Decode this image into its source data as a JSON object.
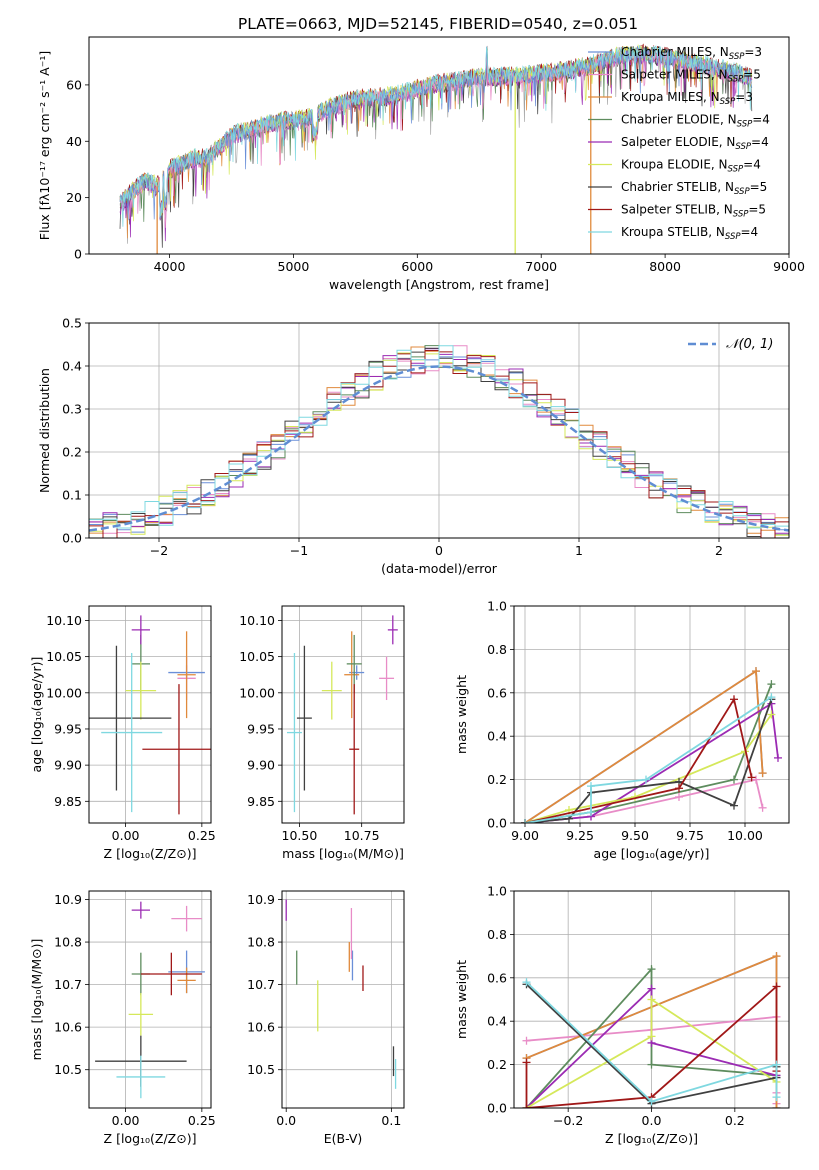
{
  "figure_title": "PLATE=0663, MJD=52145, FIBERID=0540, z=0.051",
  "colors": {
    "Chabrier MILES": "#6a8fd8",
    "Salpeter MILES": "#e88cc7",
    "Kroupa MILES": "#e08a3c",
    "Chabrier ELODIE": "#5e8c5e",
    "Salpeter ELODIE": "#9b2bb3",
    "Kroupa ELODIE": "#d5e85a",
    "Chabrier STELIB": "#404040",
    "Salpeter STELIB": "#a01818",
    "Kroupa STELIB": "#7fd8e0",
    "normal": "#5f8dd3"
  },
  "chart_data": [
    {
      "id": "spectrum",
      "type": "line",
      "xlabel": "wavelength [Angstrom, rest frame]",
      "ylabel": "Flux [fλ10⁻¹⁷ erg cm⁻² s⁻¹ A⁻¹]",
      "xlim": [
        3350,
        9000
      ],
      "ylim": [
        0,
        77
      ],
      "xticks": [
        "4000",
        "5000",
        "6000",
        "7000",
        "8000",
        "9000"
      ],
      "yticks": [
        "0",
        "20",
        "40",
        "60"
      ],
      "continuum": {
        "x": [
          3600,
          3700,
          3800,
          3900,
          4000,
          4100,
          4200,
          4300,
          4400,
          4500,
          4700,
          4900,
          5100,
          5300,
          5500,
          5800,
          6100,
          6400,
          6600,
          6800,
          7000,
          7200,
          7400,
          7600,
          7800,
          8000,
          8200,
          8400,
          8600,
          8700
        ],
        "y": [
          18,
          22,
          26,
          24,
          30,
          32,
          34,
          34,
          38,
          42,
          45,
          47,
          48,
          52,
          55,
          56,
          60,
          62,
          63,
          63,
          64,
          65,
          67,
          70,
          71,
          70,
          68,
          66,
          64,
          62
        ]
      },
      "legend": [
        {
          "label": "Chabrier MILES, N",
          "sub": "SSP",
          "tail": "=3",
          "key": "Chabrier MILES"
        },
        {
          "label": "Salpeter MILES, N",
          "sub": "SSP",
          "tail": "=5",
          "key": "Salpeter MILES"
        },
        {
          "label": "Kroupa MILES, N",
          "sub": "SSP",
          "tail": "=3",
          "key": "Kroupa MILES"
        },
        {
          "label": "Chabrier ELODIE, N",
          "sub": "SSP",
          "tail": "=4",
          "key": "Chabrier ELODIE"
        },
        {
          "label": "Salpeter ELODIE, N",
          "sub": "SSP",
          "tail": "=4",
          "key": "Salpeter ELODIE"
        },
        {
          "label": "Kroupa ELODIE, N",
          "sub": "SSP",
          "tail": "=4",
          "key": "Kroupa ELODIE"
        },
        {
          "label": "Chabrier STELIB, N",
          "sub": "SSP",
          "tail": "=5",
          "key": "Chabrier STELIB"
        },
        {
          "label": "Salpeter STELIB, N",
          "sub": "SSP",
          "tail": "=5",
          "key": "Salpeter STELIB"
        },
        {
          "label": "Kroupa STELIB, N",
          "sub": "SSP",
          "tail": "=4",
          "key": "Kroupa STELIB"
        }
      ]
    },
    {
      "id": "residuals",
      "type": "line",
      "xlabel": "(data-model)/error",
      "ylabel": "Normed distribution",
      "xlim": [
        -2.5,
        2.5
      ],
      "ylim": [
        0,
        0.5
      ],
      "xticks": [
        "−2",
        "−1",
        "0",
        "1",
        "2"
      ],
      "yticks": [
        "0.0",
        "0.1",
        "0.2",
        "0.3",
        "0.4",
        "0.5"
      ],
      "grid": true,
      "bin_width": 0.1,
      "legend": [
        {
          "label": "𝒩(0, 1)",
          "key": "normal"
        }
      ]
    },
    {
      "id": "age-vs-Z",
      "type": "scatter",
      "xlabel": "Z [log₁₀(Z/Z⊙)]",
      "ylabel": "age  [log₁₀(age/yr)]",
      "xlim": [
        -0.12,
        0.28
      ],
      "ylim": [
        9.82,
        10.12
      ],
      "xticks": [
        "0.00",
        "0.25"
      ],
      "yticks": [
        "9.85",
        "9.90",
        "9.95",
        "10.00",
        "10.05",
        "10.10"
      ],
      "grid": true,
      "points": [
        {
          "key": "Chabrier MILES",
          "x": 0.2,
          "y": 10.028,
          "xerr": 0.06,
          "yerr": 0.01
        },
        {
          "key": "Salpeter MILES",
          "x": 0.2,
          "y": 10.02,
          "xerr": 0.03,
          "yerr": 0.03
        },
        {
          "key": "Kroupa MILES",
          "x": 0.2,
          "y": 10.025,
          "xerr": 0.03,
          "yerr": 0.06
        },
        {
          "key": "Chabrier ELODIE",
          "x": 0.05,
          "y": 10.04,
          "xerr": 0.03,
          "yerr": 0.04
        },
        {
          "key": "Salpeter ELODIE",
          "x": 0.05,
          "y": 10.087,
          "xerr": 0.03,
          "yerr": 0.02
        },
        {
          "key": "Kroupa ELODIE",
          "x": 0.05,
          "y": 10.003,
          "xerr": 0.05,
          "yerr": 0.04
        },
        {
          "key": "Chabrier STELIB",
          "x": -0.03,
          "y": 9.965,
          "xerr": 0.18,
          "yerr": 0.1
        },
        {
          "key": "Salpeter STELIB",
          "x": 0.175,
          "y": 9.922,
          "xerr": 0.12,
          "yerr": 0.09
        },
        {
          "key": "Kroupa STELIB",
          "x": 0.02,
          "y": 9.945,
          "xerr": 0.1,
          "yerr": 0.11
        }
      ]
    },
    {
      "id": "age-vs-mass",
      "type": "scatter",
      "xlabel": "mass [log₁₀(M/M⊙)]",
      "ylabel": "",
      "xlim": [
        10.43,
        10.92
      ],
      "ylim": [
        9.82,
        10.12
      ],
      "xticks": [
        "10.50",
        "10.75"
      ],
      "yticks": [
        "9.85",
        "9.90",
        "9.95",
        "10.00",
        "10.05",
        "10.10"
      ],
      "grid": true,
      "points": [
        {
          "key": "Chabrier MILES",
          "x": 10.73,
          "y": 10.028,
          "xerr": 0.03,
          "yerr": 0.01
        },
        {
          "key": "Salpeter MILES",
          "x": 10.85,
          "y": 10.02,
          "xerr": 0.03,
          "yerr": 0.03
        },
        {
          "key": "Kroupa MILES",
          "x": 10.71,
          "y": 10.025,
          "xerr": 0.03,
          "yerr": 0.06
        },
        {
          "key": "Chabrier ELODIE",
          "x": 10.72,
          "y": 10.04,
          "xerr": 0.03,
          "yerr": 0.04
        },
        {
          "key": "Salpeter ELODIE",
          "x": 10.875,
          "y": 10.087,
          "xerr": 0.02,
          "yerr": 0.02
        },
        {
          "key": "Kroupa ELODIE",
          "x": 10.63,
          "y": 10.003,
          "xerr": 0.04,
          "yerr": 0.04
        },
        {
          "key": "Chabrier STELIB",
          "x": 10.52,
          "y": 9.965,
          "xerr": 0.03,
          "yerr": 0.1
        },
        {
          "key": "Salpeter STELIB",
          "x": 10.72,
          "y": 9.922,
          "xerr": 0.02,
          "yerr": 0.09
        },
        {
          "key": "Kroupa STELIB",
          "x": 10.48,
          "y": 9.945,
          "xerr": 0.03,
          "yerr": 0.11
        }
      ]
    },
    {
      "id": "weight-vs-age",
      "type": "line",
      "xlabel": "age  [log₁₀(age/yr)]",
      "ylabel": "mass weight",
      "xlim": [
        8.95,
        10.2
      ],
      "ylim": [
        0,
        1
      ],
      "xticks": [
        "9.00",
        "9.25",
        "9.50",
        "9.75",
        "10.00"
      ],
      "yticks": [
        "0.0",
        "0.2",
        "0.4",
        "0.6",
        "0.8",
        "1.0"
      ],
      "grid": true,
      "series": [
        {
          "key": "Chabrier MILES",
          "x": [
            9.0,
            10.05,
            10.08
          ],
          "y": [
            0.0,
            0.7,
            0.23
          ]
        },
        {
          "key": "Salpeter MILES",
          "x": [
            9.0,
            9.3,
            9.7,
            10.05,
            10.08
          ],
          "y": [
            0.0,
            0.03,
            0.12,
            0.2,
            0.07
          ]
        },
        {
          "key": "Kroupa MILES",
          "x": [
            9.0,
            10.05,
            10.08
          ],
          "y": [
            0.0,
            0.7,
            0.23
          ]
        },
        {
          "key": "Chabrier ELODIE",
          "x": [
            9.0,
            9.3,
            9.95,
            10.12
          ],
          "y": [
            0.0,
            0.05,
            0.2,
            0.64
          ]
        },
        {
          "key": "Salpeter ELODIE",
          "x": [
            9.0,
            9.3,
            10.12,
            10.15
          ],
          "y": [
            0.0,
            0.03,
            0.55,
            0.3
          ]
        },
        {
          "key": "Kroupa ELODIE",
          "x": [
            9.0,
            9.2,
            9.5,
            10.0,
            10.12
          ],
          "y": [
            0.0,
            0.06,
            0.12,
            0.33,
            0.5
          ]
        },
        {
          "key": "Chabrier STELIB",
          "x": [
            9.0,
            9.2,
            9.3,
            9.7,
            9.95,
            10.12
          ],
          "y": [
            0.0,
            0.02,
            0.14,
            0.19,
            0.08,
            0.57
          ]
        },
        {
          "key": "Salpeter STELIB",
          "x": [
            9.0,
            9.7,
            9.95,
            10.03
          ],
          "y": [
            0.0,
            0.16,
            0.57,
            0.21
          ]
        },
        {
          "key": "Kroupa STELIB",
          "x": [
            9.0,
            9.3,
            9.3,
            9.55,
            10.12
          ],
          "y": [
            0.0,
            0.05,
            0.17,
            0.2,
            0.58
          ]
        }
      ]
    },
    {
      "id": "mass-vs-Z",
      "type": "scatter",
      "xlabel": "Z [log₁₀(Z/Z⊙)]",
      "ylabel": "mass [log₁₀(M/M⊙)]",
      "xlim": [
        -0.12,
        0.28
      ],
      "ylim": [
        10.41,
        10.92
      ],
      "xticks": [
        "0.00",
        "0.25"
      ],
      "yticks": [
        "10.5",
        "10.6",
        "10.7",
        "10.8",
        "10.9"
      ],
      "grid": true,
      "points": [
        {
          "key": "Chabrier MILES",
          "x": 0.2,
          "y": 10.73,
          "xerr": 0.06,
          "yerr": 0.05
        },
        {
          "key": "Salpeter MILES",
          "x": 0.2,
          "y": 10.855,
          "xerr": 0.05,
          "yerr": 0.03
        },
        {
          "key": "Kroupa MILES",
          "x": 0.2,
          "y": 10.71,
          "xerr": 0.03,
          "yerr": 0.03
        },
        {
          "key": "Chabrier ELODIE",
          "x": 0.05,
          "y": 10.725,
          "xerr": 0.03,
          "yerr": 0.05
        },
        {
          "key": "Salpeter ELODIE",
          "x": 0.05,
          "y": 10.875,
          "xerr": 0.03,
          "yerr": 0.02
        },
        {
          "key": "Kroupa ELODIE",
          "x": 0.05,
          "y": 10.63,
          "xerr": 0.04,
          "yerr": 0.05
        },
        {
          "key": "Chabrier STELIB",
          "x": 0.05,
          "y": 10.52,
          "xerr": 0.15,
          "yerr": 0.06
        },
        {
          "key": "Salpeter STELIB",
          "x": 0.15,
          "y": 10.725,
          "xerr": 0.1,
          "yerr": 0.05
        },
        {
          "key": "Kroupa STELIB",
          "x": 0.05,
          "y": 10.483,
          "xerr": 0.08,
          "yerr": 0.05
        }
      ]
    },
    {
      "id": "mass-vs-EBV",
      "type": "scatter",
      "xlabel": "E(B-V)",
      "ylabel": "",
      "xlim": [
        -0.004,
        0.112
      ],
      "ylim": [
        10.41,
        10.92
      ],
      "xticks": [
        "0.0",
        "0.1"
      ],
      "yticks": [
        "10.5",
        "10.6",
        "10.7",
        "10.8",
        "10.9"
      ],
      "grid": true,
      "points": [
        {
          "key": "Chabrier MILES",
          "x": 0.063,
          "y": 10.745,
          "xerr": 0,
          "yerr": 0.035
        },
        {
          "key": "Salpeter MILES",
          "x": 0.062,
          "y": 10.82,
          "xerr": 0,
          "yerr": 0.06
        },
        {
          "key": "Kroupa MILES",
          "x": 0.06,
          "y": 10.765,
          "xerr": 0,
          "yerr": 0.035
        },
        {
          "key": "Chabrier ELODIE",
          "x": 0.01,
          "y": 10.74,
          "xerr": 0,
          "yerr": 0.04
        },
        {
          "key": "Salpeter ELODIE",
          "x": 0.0,
          "y": 10.875,
          "xerr": 0,
          "yerr": 0.025
        },
        {
          "key": "Kroupa ELODIE",
          "x": 0.03,
          "y": 10.65,
          "xerr": 0,
          "yerr": 0.06
        },
        {
          "key": "Chabrier STELIB",
          "x": 0.102,
          "y": 10.52,
          "xerr": 0,
          "yerr": 0.035
        },
        {
          "key": "Salpeter STELIB",
          "x": 0.073,
          "y": 10.715,
          "xerr": 0,
          "yerr": 0.03
        },
        {
          "key": "Kroupa STELIB",
          "x": 0.104,
          "y": 10.49,
          "xerr": 0,
          "yerr": 0.035
        }
      ]
    },
    {
      "id": "weight-vs-Z",
      "type": "line",
      "xlabel": "Z [log₁₀(Z/Z⊙)]",
      "ylabel": "mass weight",
      "xlim": [
        -0.33,
        0.33
      ],
      "ylim": [
        0,
        1
      ],
      "xticks": [
        "−0.2",
        "0.0",
        "0.2"
      ],
      "yticks": [
        "0.0",
        "0.2",
        "0.4",
        "0.6",
        "0.8",
        "1.0"
      ],
      "grid": true,
      "series": [
        {
          "key": "Chabrier MILES",
          "x": [
            -0.3,
            0.3,
            0.3
          ],
          "y": [
            0.23,
            0.7,
            0.0
          ]
        },
        {
          "key": "Salpeter MILES",
          "x": [
            -0.3,
            0.0,
            0.3,
            0.3,
            0.3
          ],
          "y": [
            0.31,
            0.36,
            0.42,
            0.07,
            0.02
          ]
        },
        {
          "key": "Kroupa MILES",
          "x": [
            -0.3,
            0.3,
            0.3
          ],
          "y": [
            0.23,
            0.7,
            0.0
          ]
        },
        {
          "key": "Chabrier ELODIE",
          "x": [
            -0.3,
            0.0,
            0.0,
            0.3
          ],
          "y": [
            0.0,
            0.64,
            0.2,
            0.15
          ]
        },
        {
          "key": "Salpeter ELODIE",
          "x": [
            -0.3,
            0.0,
            0.0,
            0.3
          ],
          "y": [
            0.0,
            0.55,
            0.3,
            0.15
          ]
        },
        {
          "key": "Kroupa ELODIE",
          "x": [
            -0.3,
            0.0,
            0.0,
            0.3
          ],
          "y": [
            0.0,
            0.33,
            0.5,
            0.12
          ]
        },
        {
          "key": "Chabrier STELIB",
          "x": [
            -0.3,
            0.0,
            0.3,
            0.3
          ],
          "y": [
            0.57,
            0.02,
            0.14,
            0.19
          ]
        },
        {
          "key": "Salpeter STELIB",
          "x": [
            -0.3,
            -0.3,
            0.0,
            0.3,
            0.3
          ],
          "y": [
            0.21,
            0.0,
            0.05,
            0.56,
            0.17
          ]
        },
        {
          "key": "Kroupa STELIB",
          "x": [
            -0.3,
            0.0,
            0.3,
            0.3
          ],
          "y": [
            0.58,
            0.03,
            0.2,
            0.05
          ]
        }
      ]
    }
  ]
}
